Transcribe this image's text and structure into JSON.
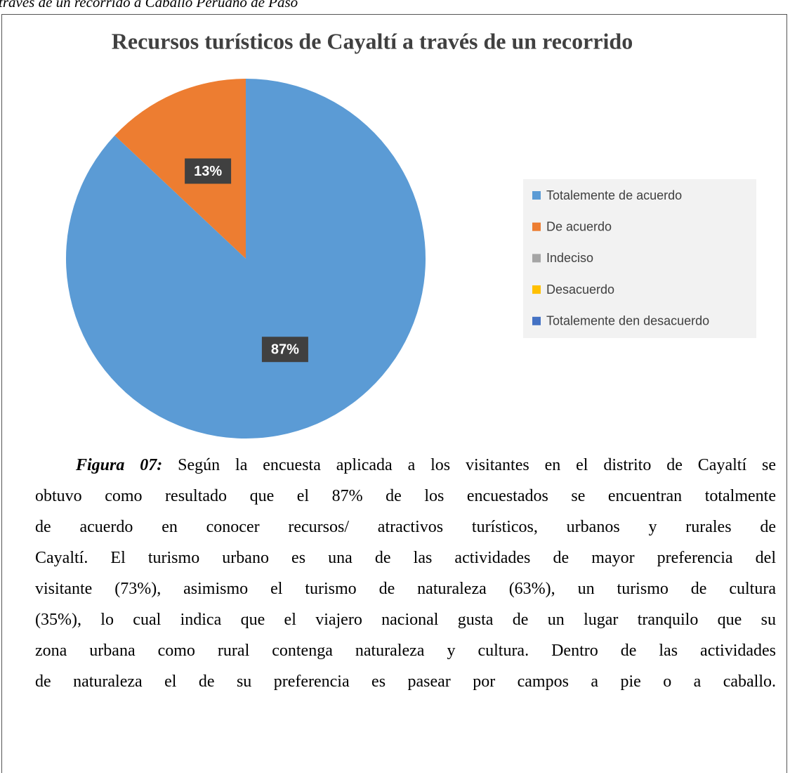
{
  "header": "través de un recorrido a Caballo Peruano de Paso",
  "chart_data": {
    "type": "pie",
    "title": "Recursos turísticos de Cayaltí a través de un recorrido",
    "categories": [
      "Totalemente de acuerdo",
      "De acuerdo",
      "Indeciso",
      "Desacuerdo",
      "Totalemente den desacuerdo"
    ],
    "values": [
      87,
      13,
      0,
      0,
      0
    ],
    "value_labels": [
      "87%",
      "13%",
      null,
      null,
      null
    ],
    "colors": [
      "#5b9bd5",
      "#ed7d31",
      "#a5a5a5",
      "#ffc000",
      "#4472c4"
    ],
    "legend": "right"
  },
  "caption": {
    "label": "Figura 07:",
    "lines": [
      " Según la encuesta aplicada a los visitantes en el distrito de Cayaltí se",
      "obtuvo como resultado que el 87% de los encuestados se encuentran totalmente",
      "de acuerdo en conocer recursos/ atractivos turísticos, urbanos y rurales de",
      "Cayaltí. El turismo urbano es una de las actividades de mayor preferencia del",
      "visitante (73%), asimismo el turismo de naturaleza (63%), un turismo de cultura",
      "(35%), lo cual indica que el viajero nacional gusta de un lugar tranquilo que su",
      "zona urbana como rural contenga naturaleza y cultura. Dentro de las actividades",
      "de naturaleza el de su preferencia es pasear por campos a pie o a caballo."
    ]
  }
}
